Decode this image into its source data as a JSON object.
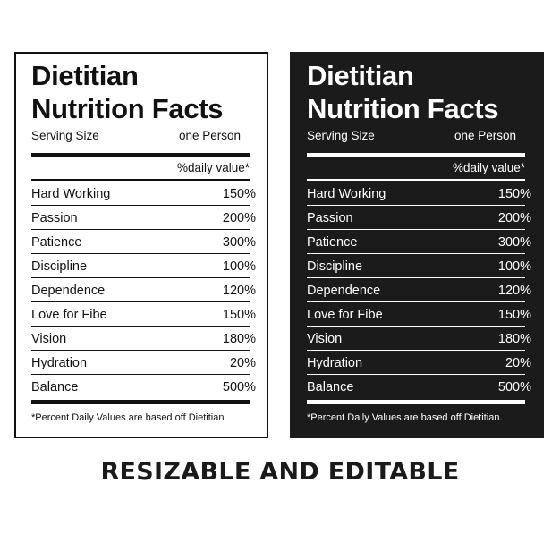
{
  "panels": [
    {
      "title_line1": "Dietitian",
      "title_line2": "Nutrition Facts",
      "serving_label": "Serving Size",
      "serving_value": "one Person",
      "daily_value_header": "%daily value*",
      "rows": [
        {
          "name": "Hard Working",
          "value": "150%"
        },
        {
          "name": "Passion",
          "value": "200%"
        },
        {
          "name": "Patience",
          "value": "300%"
        },
        {
          "name": "Discipline",
          "value": "100%"
        },
        {
          "name": "Dependence",
          "value": "120%"
        },
        {
          "name": "Love for Fibe",
          "value": "150%"
        },
        {
          "name": "Vision",
          "value": "180%"
        },
        {
          "name": "Hydration",
          "value": "20%"
        },
        {
          "name": "Balance",
          "value": "500%"
        }
      ],
      "footnote": "*Percent Daily Values are based off Dietitian."
    },
    {
      "title_line1": "Dietitian",
      "title_line2": "Nutrition Facts",
      "serving_label": "Serving Size",
      "serving_value": "one Person",
      "daily_value_header": "%daily value*",
      "rows": [
        {
          "name": "Hard Working",
          "value": "150%"
        },
        {
          "name": "Passion",
          "value": "200%"
        },
        {
          "name": "Patience",
          "value": "300%"
        },
        {
          "name": "Discipline",
          "value": "100%"
        },
        {
          "name": "Dependence",
          "value": "120%"
        },
        {
          "name": "Love for Fibe",
          "value": "150%"
        },
        {
          "name": "Vision",
          "value": "180%"
        },
        {
          "name": "Hydration",
          "value": "20%"
        },
        {
          "name": "Balance",
          "value": "500%"
        }
      ],
      "footnote": "*Percent Daily Values are based off Dietitian."
    }
  ],
  "caption": "RESIZABLE AND EDITABLE",
  "colors": {
    "light_bg": "#ffffff",
    "dark_bg": "#1b1b1b",
    "ink": "#111111"
  }
}
